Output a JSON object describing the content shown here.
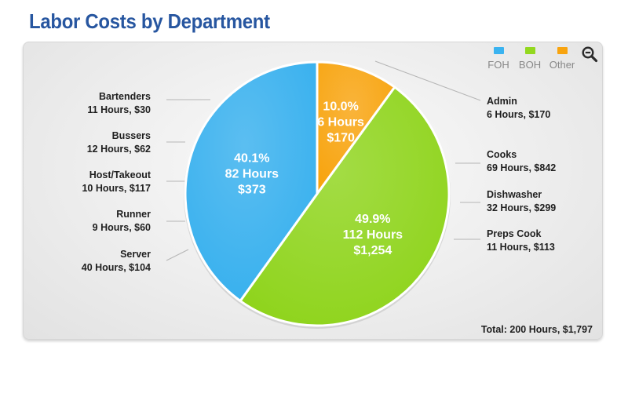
{
  "page": {
    "title": "Labor Costs by Department"
  },
  "legend": {
    "items": [
      {
        "label": "FOH",
        "color": "#3ab3f0"
      },
      {
        "label": "BOH",
        "color": "#93d81f"
      },
      {
        "label": "Other",
        "color": "#f8a40f"
      }
    ]
  },
  "toolbar": {
    "zoom_icon": "zoom-out-icon"
  },
  "chart_data": {
    "type": "pie",
    "title": "Labor Costs by Department",
    "slices": [
      {
        "name": "Other",
        "percent": 10.0,
        "percent_label": "10.0%",
        "hours_label": "6 Hours",
        "cost_label": "$170",
        "color": "#f8a40f",
        "text_color": "#ffffff"
      },
      {
        "name": "BOH",
        "percent": 49.9,
        "percent_label": "49.9%",
        "hours_label": "112 Hours",
        "cost_label": "$1,254",
        "color": "#8fd41c",
        "text_color": "#ffffff"
      },
      {
        "name": "FOH",
        "percent": 40.1,
        "percent_label": "40.1%",
        "hours_label": "82 Hours",
        "cost_label": "$373",
        "color": "#37b0ee",
        "text_color": "#ffffff"
      }
    ],
    "categories_left": [
      {
        "name": "Bartenders",
        "detail": "11 Hours, $30"
      },
      {
        "name": "Bussers",
        "detail": "12 Hours, $62"
      },
      {
        "name": "Host/Takeout",
        "detail": "10 Hours, $117"
      },
      {
        "name": "Runner",
        "detail": "9 Hours, $60"
      },
      {
        "name": "Server",
        "detail": "40 Hours, $104"
      }
    ],
    "categories_right": [
      {
        "name": "Admin",
        "detail": "6 Hours, $170"
      },
      {
        "name": "Cooks",
        "detail": "69 Hours, $842"
      },
      {
        "name": "Dishwasher",
        "detail": "32 Hours, $299"
      },
      {
        "name": "Preps Cook",
        "detail": "11 Hours, $113"
      }
    ],
    "total": "Total: 200 Hours, $1,797",
    "legend_position": "top-right"
  }
}
